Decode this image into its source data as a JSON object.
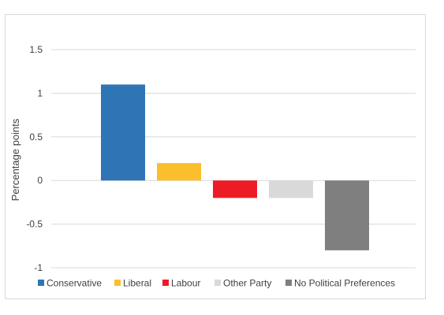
{
  "chart_data": {
    "type": "bar",
    "title": "",
    "xlabel": "",
    "ylabel": "Percentage points",
    "ylim": [
      -1,
      1.5
    ],
    "yticks": [
      1.5,
      1,
      0.5,
      0,
      -0.5,
      -1
    ],
    "ytick_labels": [
      "1.5",
      "1",
      "0.5",
      "0",
      "-0.5",
      "-1"
    ],
    "grid": true,
    "legend_position": "bottom",
    "series": [
      {
        "name": "Conservative",
        "value": 1.1,
        "color": "#2e75b6"
      },
      {
        "name": "Liberal",
        "value": 0.2,
        "color": "#fbbf2d"
      },
      {
        "name": "Labour",
        "value": -0.2,
        "color": "#ed1c24"
      },
      {
        "name": "Other Party",
        "value": -0.2,
        "color": "#d9d9d9"
      },
      {
        "name": "No Political Preferences",
        "value": -0.8,
        "color": "#7f7f7f"
      }
    ]
  }
}
